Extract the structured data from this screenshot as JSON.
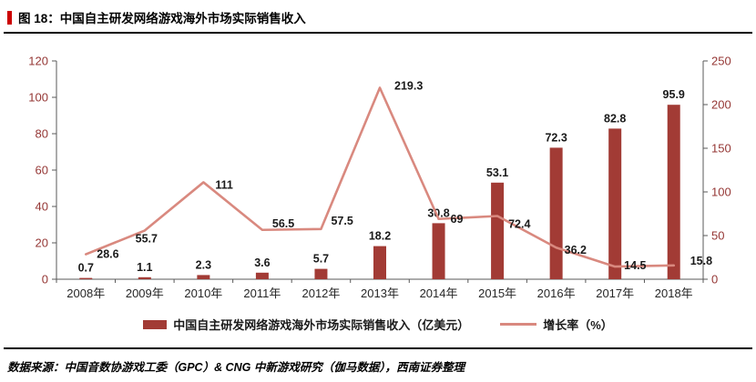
{
  "title": "图 18：中国自主研发网络游戏海外市场实际销售收入",
  "footer": "数据来源：中国音数协游戏工委（GPC）& CNG 中新游戏研究（伽马数据），西南证券整理",
  "colors": {
    "bar": "#a23b35",
    "line": "#d9897f",
    "title_accent": "#cc0000",
    "axis_number_text": "#953735",
    "category_text": "#262626",
    "data_label_text": "#1a1a1a"
  },
  "chart_data": {
    "type": "bar",
    "subtype": "combo-bar-line-dual-axis",
    "categories": [
      "2008年",
      "2009年",
      "2010年",
      "2011年",
      "2012年",
      "2013年",
      "2014年",
      "2015年",
      "2016年",
      "2017年",
      "2018年"
    ],
    "series": [
      {
        "name": "中国自主研发网络游戏海外市场实际销售收入（亿美元）",
        "type": "bar",
        "axis": "left",
        "values": [
          0.7,
          1.1,
          2.3,
          3.6,
          5.7,
          18.2,
          30.8,
          53.1,
          72.3,
          82.8,
          95.9
        ]
      },
      {
        "name": "增长率（%）",
        "type": "line",
        "axis": "right",
        "values": [
          28.6,
          55.7,
          111,
          56.5,
          57.5,
          219.3,
          69,
          72.4,
          36.2,
          14.5,
          15.8
        ]
      }
    ],
    "left_axis": {
      "min": 0,
      "max": 120,
      "ticks": [
        0,
        20,
        40,
        60,
        80,
        100,
        120
      ]
    },
    "right_axis": {
      "min": 0,
      "max": 250,
      "ticks": [
        0,
        50,
        100,
        150,
        200,
        250
      ]
    },
    "grid": false,
    "legend_position": "bottom",
    "data_labels": true
  }
}
